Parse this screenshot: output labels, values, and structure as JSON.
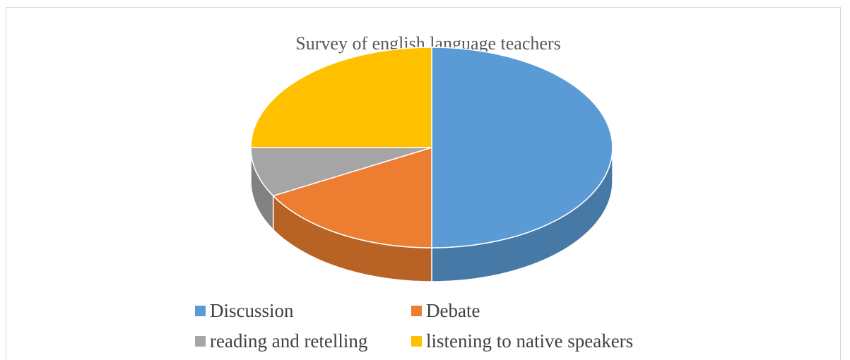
{
  "chart_data": {
    "type": "pie",
    "title": "Survey of english language teachers",
    "three_d": true,
    "legend_position": "bottom",
    "categories": [
      "Discussion",
      "Debate",
      "reading and retelling",
      "listening to native speakers"
    ],
    "values": [
      50,
      17,
      8,
      25
    ],
    "unit": "%",
    "colors": [
      "#5b9bd5",
      "#ed7d31",
      "#a5a5a5",
      "#ffc000"
    ]
  }
}
